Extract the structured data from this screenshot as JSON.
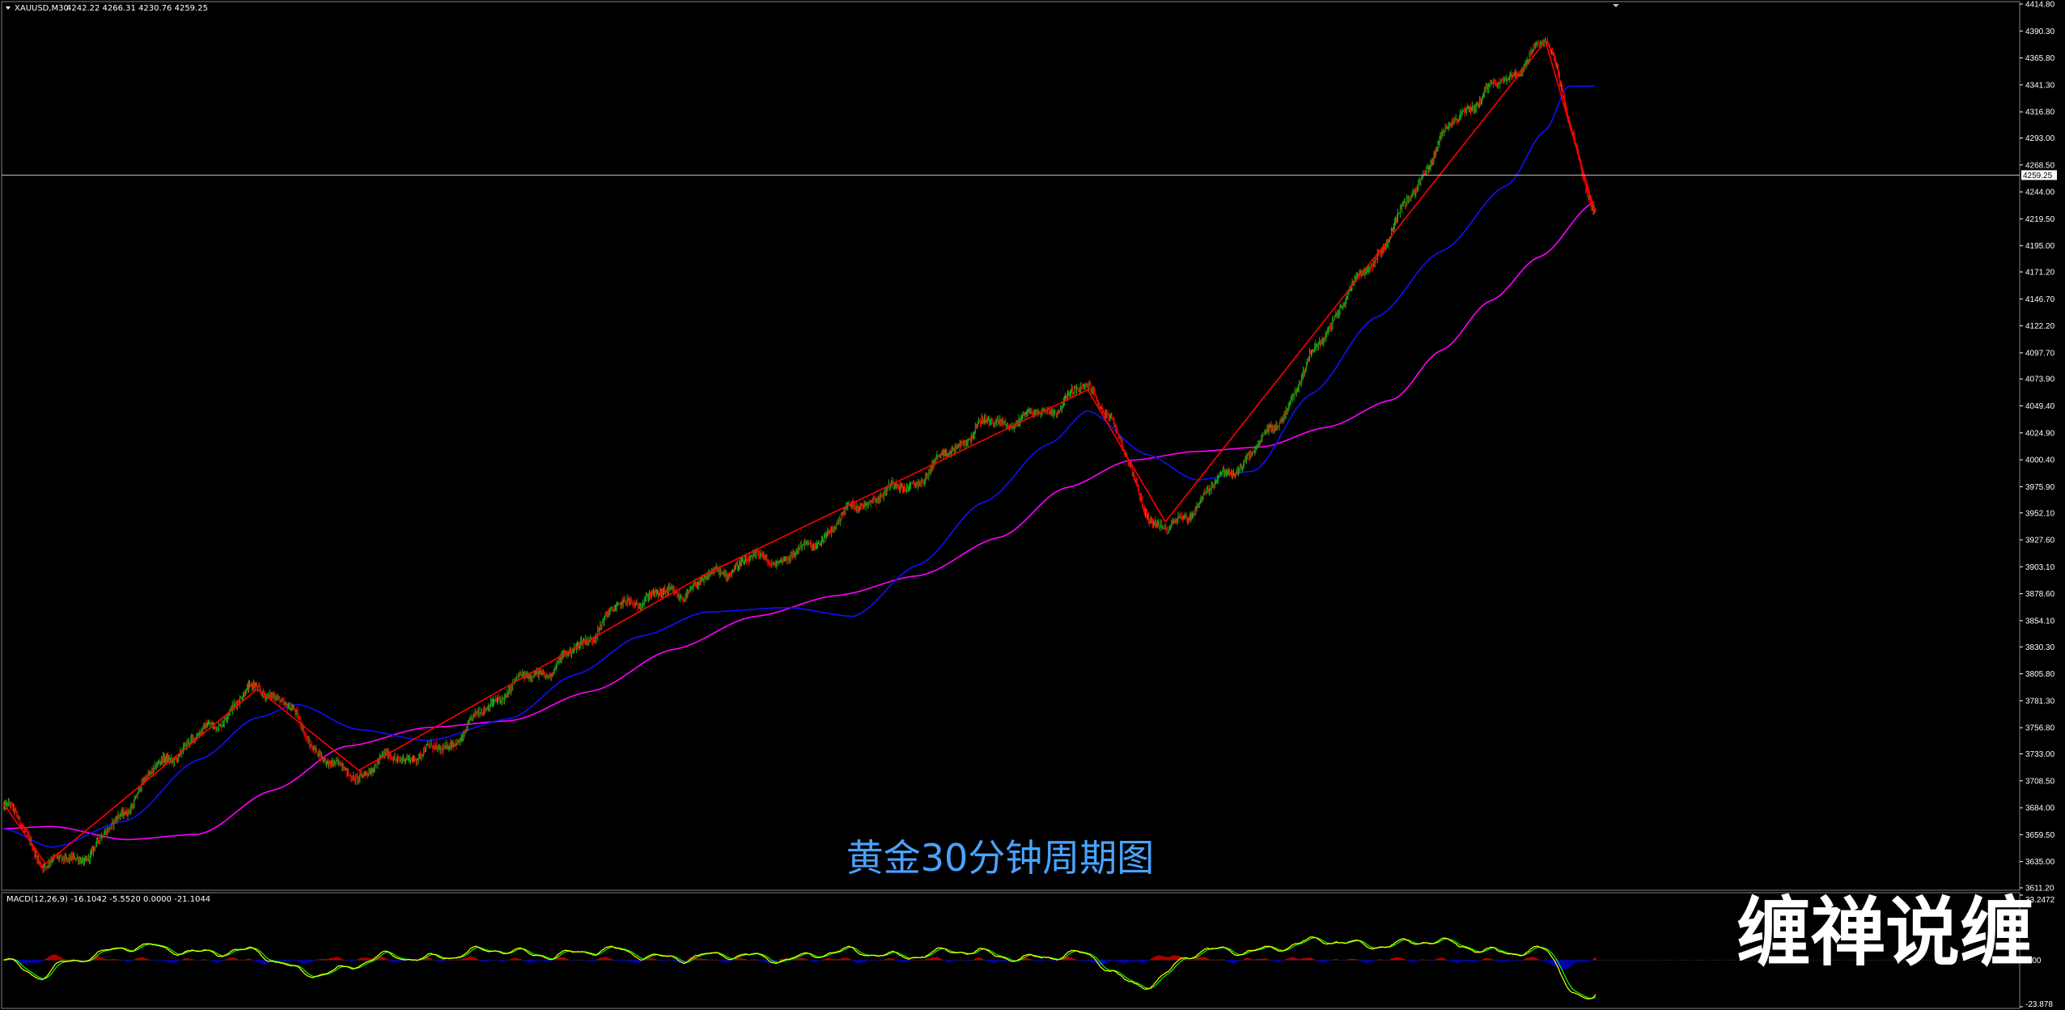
{
  "header": {
    "symbol_label": "XAUUSD,M30",
    "ohlc_label": "4242.22 4266.31 4230.76 4259.25"
  },
  "watermark_text": "黄金30分钟周期图",
  "brand_text": "缠禅说缠",
  "colors": {
    "background": "#000000",
    "bull_candle": "#18a818",
    "bear_candle": "#ff0000",
    "ma_fast": "#1010ff",
    "ma_slow": "#ff00ff",
    "zigzag": "#ff0000",
    "macd_line": "#ffff00",
    "signal_line": "#00ff00",
    "hist_pos": "#c00000",
    "hist_neg": "#0000c0",
    "watermark": "#4aa3ff",
    "current_price_line": "#c0c0c0"
  },
  "chart_data": [
    {
      "type": "candlestick",
      "title": "",
      "current_price": 4259.25,
      "current_price_label": "4259.25",
      "ylim": [
        3611.2,
        4414.8
      ],
      "y_tick_labels": [
        "4414.80",
        "4390.30",
        "4365.80",
        "4341.30",
        "4316.80",
        "4293.00",
        "4268.50",
        "4244.00",
        "4219.50",
        "4195.00",
        "4171.20",
        "4146.70",
        "4122.20",
        "4097.70",
        "4073.90",
        "4049.40",
        "4024.90",
        "4000.40",
        "3975.90",
        "3952.10",
        "3927.60",
        "3903.10",
        "3878.60",
        "3854.10",
        "3830.30",
        "3805.80",
        "3781.30",
        "3756.80",
        "3733.00",
        "3708.50",
        "3684.00",
        "3659.50",
        "3635.00",
        "3611.20"
      ],
      "zigzag": [
        {
          "bar": 0,
          "price": 3688
        },
        {
          "bar": 52,
          "price": 3633
        },
        {
          "bar": 311,
          "price": 3792
        },
        {
          "bar": 435,
          "price": 3718
        },
        {
          "bar": 861,
          "price": 3897
        },
        {
          "bar": 1327,
          "price": 4064
        },
        {
          "bar": 1422,
          "price": 3944
        },
        {
          "bar": 1887,
          "price": 4381
        },
        {
          "bar": 1948,
          "price": 4225
        }
      ],
      "ma_fast": [
        {
          "bar": 0,
          "price": 3665
        },
        {
          "bar": 60,
          "price": 3648
        },
        {
          "bar": 150,
          "price": 3672
        },
        {
          "bar": 240,
          "price": 3728
        },
        {
          "bar": 311,
          "price": 3766
        },
        {
          "bar": 360,
          "price": 3778
        },
        {
          "bar": 435,
          "price": 3755
        },
        {
          "bar": 520,
          "price": 3745
        },
        {
          "bar": 620,
          "price": 3765
        },
        {
          "bar": 700,
          "price": 3805
        },
        {
          "bar": 780,
          "price": 3840
        },
        {
          "bar": 861,
          "price": 3862
        },
        {
          "bar": 960,
          "price": 3866
        },
        {
          "bar": 1040,
          "price": 3858
        },
        {
          "bar": 1120,
          "price": 3905
        },
        {
          "bar": 1200,
          "price": 3962
        },
        {
          "bar": 1280,
          "price": 4015
        },
        {
          "bar": 1327,
          "price": 4045
        },
        {
          "bar": 1400,
          "price": 4005
        },
        {
          "bar": 1460,
          "price": 3982
        },
        {
          "bar": 1530,
          "price": 3990
        },
        {
          "bar": 1600,
          "price": 4060
        },
        {
          "bar": 1680,
          "price": 4130
        },
        {
          "bar": 1760,
          "price": 4190
        },
        {
          "bar": 1840,
          "price": 4250
        },
        {
          "bar": 1887,
          "price": 4300
        },
        {
          "bar": 1915,
          "price": 4340
        },
        {
          "bar": 1948,
          "price": 4340
        }
      ],
      "ma_slow": [
        {
          "bar": 0,
          "price": 3665
        },
        {
          "bar": 60,
          "price": 3667
        },
        {
          "bar": 150,
          "price": 3655
        },
        {
          "bar": 240,
          "price": 3660
        },
        {
          "bar": 330,
          "price": 3700
        },
        {
          "bar": 420,
          "price": 3740
        },
        {
          "bar": 520,
          "price": 3757
        },
        {
          "bar": 620,
          "price": 3763
        },
        {
          "bar": 720,
          "price": 3790
        },
        {
          "bar": 820,
          "price": 3828
        },
        {
          "bar": 920,
          "price": 3858
        },
        {
          "bar": 1020,
          "price": 3877
        },
        {
          "bar": 1120,
          "price": 3895
        },
        {
          "bar": 1220,
          "price": 3930
        },
        {
          "bar": 1300,
          "price": 3975
        },
        {
          "bar": 1380,
          "price": 4000
        },
        {
          "bar": 1460,
          "price": 4008
        },
        {
          "bar": 1540,
          "price": 4012
        },
        {
          "bar": 1620,
          "price": 4030
        },
        {
          "bar": 1700,
          "price": 4055
        },
        {
          "bar": 1760,
          "price": 4100
        },
        {
          "bar": 1820,
          "price": 4145
        },
        {
          "bar": 1880,
          "price": 4185
        },
        {
          "bar": 1948,
          "price": 4235
        }
      ],
      "bar_count": 1950
    },
    {
      "type": "macd",
      "label": "MACD(12,26,9) -16.1042 -5.5520 0.0000 -21.1044",
      "ylim": [
        -23.878,
        33.2472
      ],
      "y_tick_labels": [
        "33.2472",
        "0.00",
        "-23.878"
      ]
    }
  ]
}
